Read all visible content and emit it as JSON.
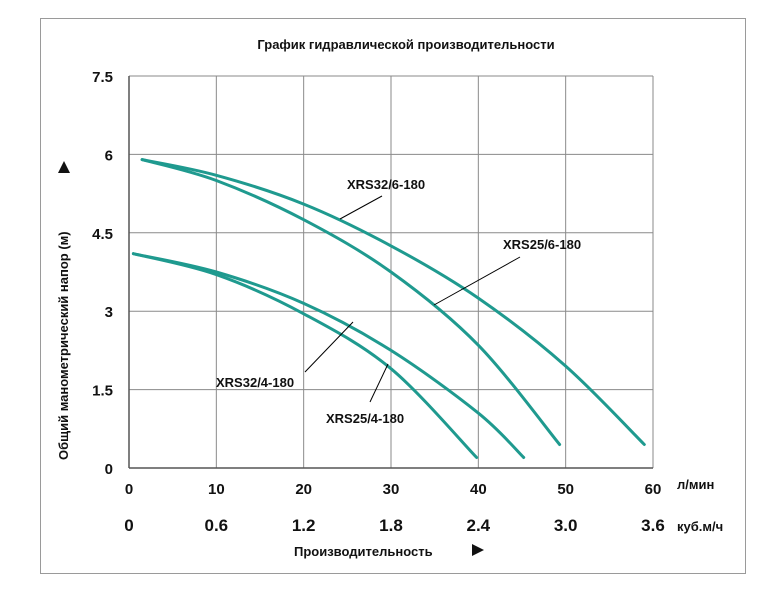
{
  "chart_data": {
    "type": "line",
    "title": "График гидравлической производительности",
    "xlabel": "Производительность",
    "ylabel": "Общий манометрический напор (м)",
    "x_unit": "л/мин",
    "x2_unit": "куб.м/ч",
    "xlim": [
      0,
      60
    ],
    "ylim": [
      0,
      7.5
    ],
    "xticks": [
      "0",
      "10",
      "20",
      "30",
      "40",
      "50",
      "60"
    ],
    "x2ticks": [
      "0",
      "0.6",
      "1.2",
      "1.8",
      "2.4",
      "3.0",
      "3.6"
    ],
    "yticks": [
      "0",
      "1.5",
      "3",
      "4.5",
      "6",
      "7.5"
    ],
    "grid": true,
    "series": [
      {
        "name": "XRS32/6-180",
        "x": [
          1.5,
          10,
          20,
          30,
          40,
          50,
          59
        ],
        "y": [
          5.9,
          5.6,
          5.05,
          4.25,
          3.25,
          1.95,
          0.45
        ]
      },
      {
        "name": "XRS25/6-180",
        "x": [
          1.5,
          10,
          20,
          30,
          40,
          49.3
        ],
        "y": [
          5.9,
          5.5,
          4.75,
          3.75,
          2.35,
          0.45
        ]
      },
      {
        "name": "XRS32/4-180",
        "x": [
          0.5,
          10,
          20,
          30,
          40,
          45.2
        ],
        "y": [
          4.1,
          3.75,
          3.15,
          2.25,
          1.05,
          0.2
        ]
      },
      {
        "name": "XRS25/4-180",
        "x": [
          0.5,
          10,
          20,
          30,
          39.8
        ],
        "y": [
          4.1,
          3.7,
          2.95,
          1.9,
          0.2
        ]
      }
    ]
  }
}
